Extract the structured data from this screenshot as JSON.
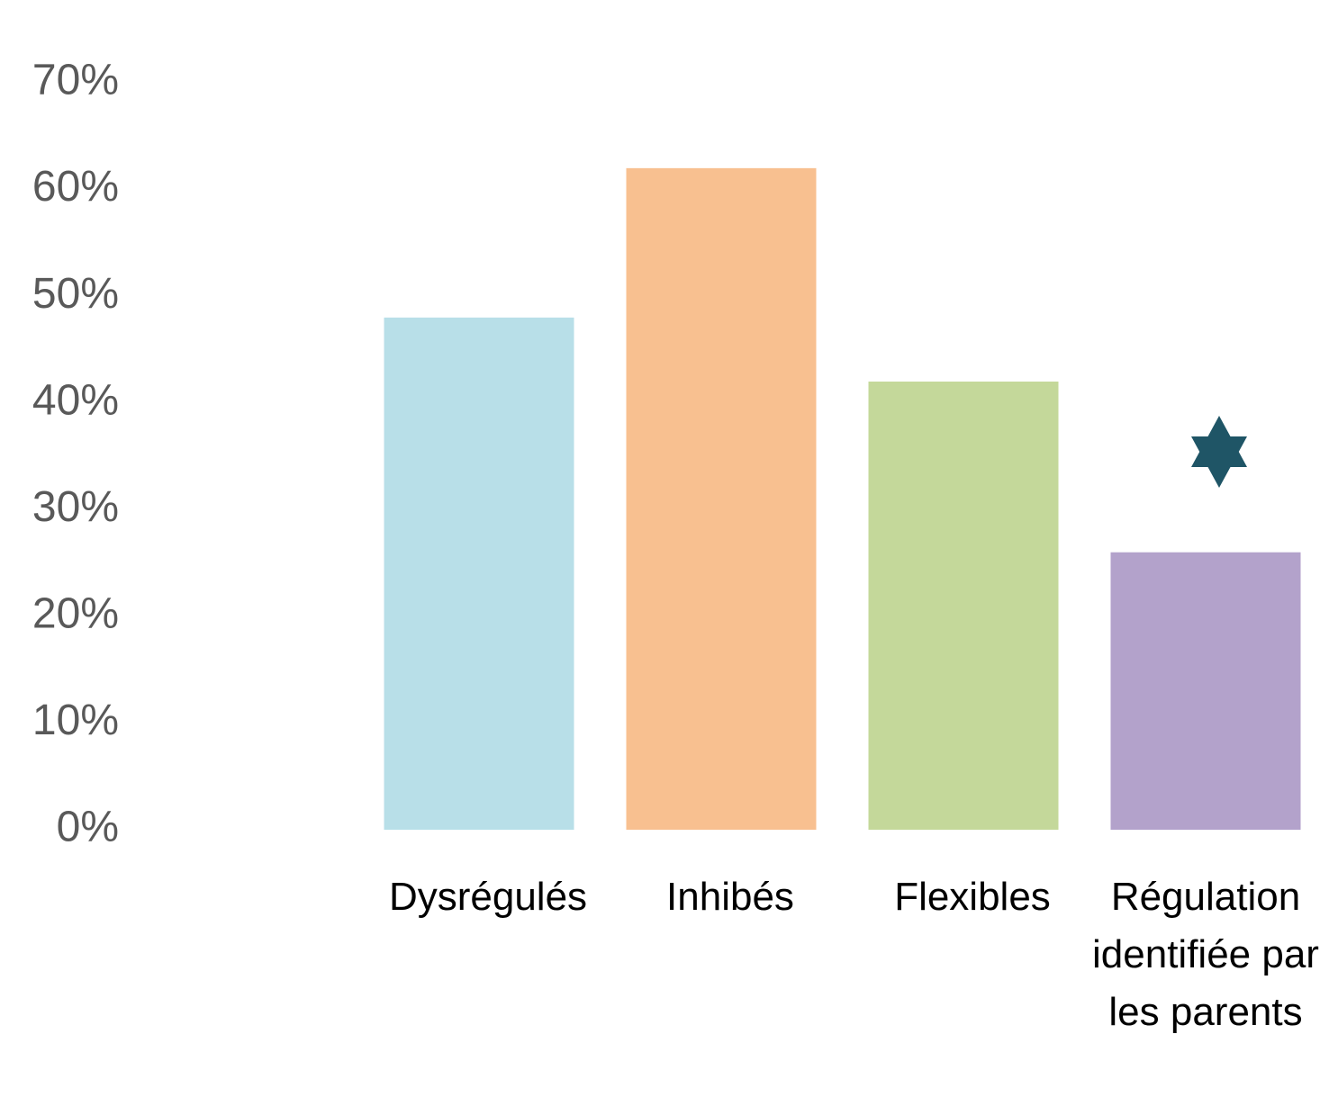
{
  "chart_data": {
    "type": "bar",
    "categories": [
      "Dysrégulés",
      "Inhibés",
      "Flexibles",
      "Régulation identifiée par les parents"
    ],
    "values": [
      48,
      62,
      42,
      26
    ],
    "colors": [
      "#b8dfe8",
      "#f8c090",
      "#c4d89a",
      "#b3a2cb"
    ],
    "ylim": [
      0,
      70
    ],
    "yticks": [
      {
        "value": 0,
        "label": "0%"
      },
      {
        "value": 10,
        "label": "10%"
      },
      {
        "value": 20,
        "label": "20%"
      },
      {
        "value": 30,
        "label": "30%"
      },
      {
        "value": 40,
        "label": "40%"
      },
      {
        "value": 50,
        "label": "50%"
      },
      {
        "value": 60,
        "label": "60%"
      },
      {
        "value": 70,
        "label": "70%"
      }
    ],
    "grid": false
  }
}
